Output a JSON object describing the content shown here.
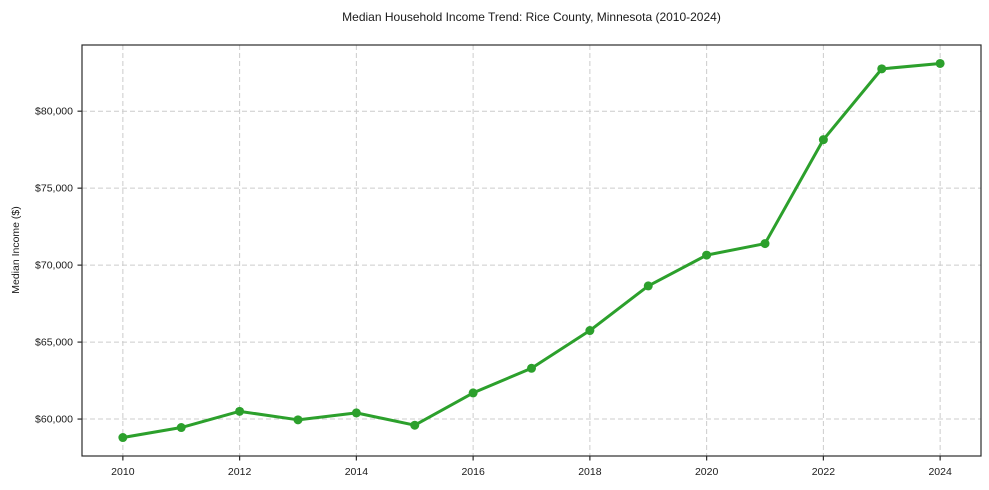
{
  "chart_data": {
    "type": "line",
    "title": "Median Household Income Trend: Rice County, Minnesota (2010-2024)",
    "xlabel": "",
    "ylabel": "Median Income ($)",
    "x": [
      2010,
      2011,
      2012,
      2013,
      2014,
      2015,
      2016,
      2017,
      2018,
      2019,
      2020,
      2021,
      2022,
      2023,
      2024
    ],
    "series": [
      {
        "name": "Median Household Income",
        "values": [
          58800,
          59450,
          60500,
          59950,
          60400,
          59600,
          61700,
          63300,
          65750,
          68650,
          70650,
          71400,
          78150,
          82750,
          83100
        ]
      }
    ],
    "xticks": [
      2010,
      2012,
      2014,
      2016,
      2018,
      2020,
      2022,
      2024
    ],
    "xtick_labels": [
      "2010",
      "2012",
      "2014",
      "2016",
      "2018",
      "2020",
      "2022",
      "2024"
    ],
    "yticks": [
      60000,
      65000,
      70000,
      75000,
      80000
    ],
    "ytick_labels": [
      "$60,000",
      "$65,000",
      "$70,000",
      "$75,000",
      "$80,000"
    ],
    "xlim": [
      2009.3,
      2024.7
    ],
    "ylim": [
      57600,
      84300
    ],
    "grid": true,
    "grid_style": "dashed",
    "legend": null,
    "colors": {
      "line": "#2ca02c",
      "marker": "#2ca02c",
      "grid": "#cccccc",
      "spine": "#2b2b2b",
      "text": "#1a1a1a"
    }
  }
}
